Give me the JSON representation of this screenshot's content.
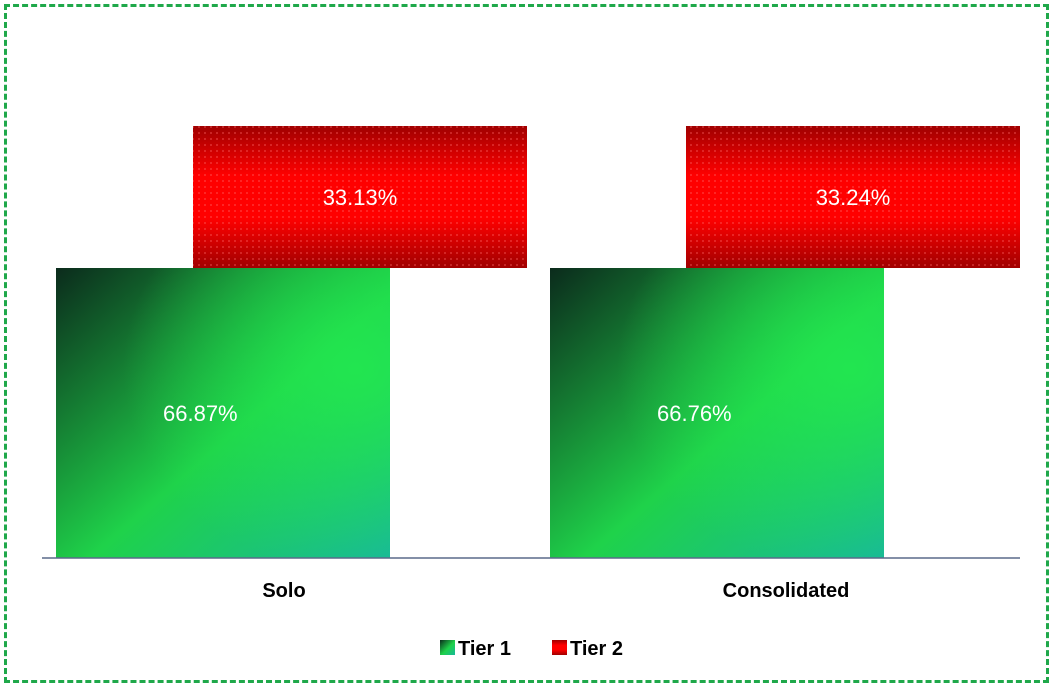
{
  "chart_data": {
    "type": "bar",
    "stacked": true,
    "categories": [
      "Solo",
      "Consolidated"
    ],
    "series": [
      {
        "name": "Tier 1",
        "values": [
          66.87,
          66.76
        ],
        "labels": [
          "66.87%",
          "66.76%"
        ],
        "color": "#1fd24a"
      },
      {
        "name": "Tier 2",
        "values": [
          33.13,
          33.24
        ],
        "labels": [
          "33.13%",
          "33.24%"
        ],
        "color": "#ff1a1a"
      }
    ],
    "ylim": [
      0,
      100
    ],
    "grid": false,
    "legend_position": "bottom"
  },
  "colors": {
    "border": "#1fa84a",
    "axis": "#5a6a8a",
    "tier1_dark": "#0b2b1c",
    "tier1_light": "#23e84f",
    "tier1_teal": "#18b89a",
    "tier2_dark": "#a00000",
    "tier2_light": "#ff0000"
  }
}
